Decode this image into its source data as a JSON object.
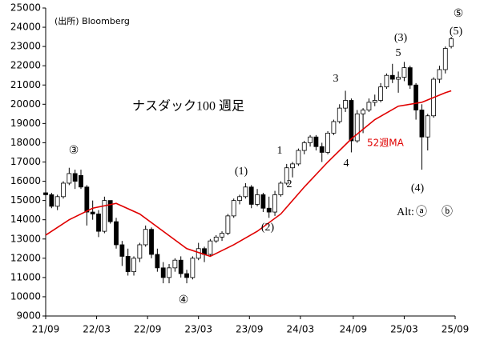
{
  "chart_data": {
    "type": "candlestick",
    "title": "ナスダック100 週足",
    "source": "(出所)  Bloomberg",
    "ylim": [
      9000,
      25000
    ],
    "yticks": [
      9000,
      10000,
      11000,
      12000,
      13000,
      14000,
      15000,
      16000,
      17000,
      18000,
      19000,
      20000,
      21000,
      22000,
      23000,
      24000,
      25000
    ],
    "xlim": [
      0,
      209
    ],
    "xticks": [
      {
        "value": 0,
        "label": "21/09"
      },
      {
        "value": 26,
        "label": "22/03"
      },
      {
        "value": 52,
        "label": "22/09"
      },
      {
        "value": 78,
        "label": "23/03"
      },
      {
        "value": 104,
        "label": "23/09"
      },
      {
        "value": 130,
        "label": "24/03"
      },
      {
        "value": 157,
        "label": "24/09"
      },
      {
        "value": 183,
        "label": "25/03"
      },
      {
        "value": 209,
        "label": "25/09"
      }
    ],
    "up_color": "#ffffff",
    "down_color": "#000000",
    "edge_color": "#000000",
    "x": [
      0,
      3,
      6,
      9,
      12,
      15,
      18,
      21,
      24,
      27,
      30,
      33,
      36,
      39,
      42,
      45,
      48,
      51,
      54,
      57,
      60,
      63,
      66,
      69,
      72,
      75,
      78,
      81,
      84,
      87,
      90,
      93,
      96,
      99,
      102,
      105,
      108,
      111,
      114,
      117,
      120,
      123,
      126,
      129,
      132,
      135,
      138,
      141,
      144,
      147,
      150,
      153,
      156,
      159,
      162,
      165,
      168,
      171,
      174,
      177,
      180,
      183,
      186,
      189,
      192,
      195,
      198,
      201,
      204,
      207
    ],
    "open": [
      15400,
      15300,
      14700,
      15200,
      15900,
      16400,
      16300,
      15700,
      14400,
      14300,
      13400,
      15000,
      13900,
      12700,
      12100,
      11300,
      12000,
      12700,
      13500,
      12200,
      11500,
      11000,
      11500,
      11900,
      11200,
      11000,
      12000,
      12500,
      12200,
      12900,
      13100,
      13300,
      14200,
      15000,
      15200,
      15700,
      14800,
      15300,
      14600,
      14400,
      15300,
      15900,
      16700,
      16900,
      17600,
      18000,
      18300,
      17800,
      17500,
      18500,
      19100,
      19800,
      20200,
      18100,
      19500,
      19700,
      20100,
      20200,
      20900,
      21500,
      21300,
      21400,
      21900,
      21000,
      19700,
      18300,
      19400,
      21300,
      21800,
      23000
    ],
    "high": [
      15700,
      15400,
      15300,
      16000,
      16700,
      16600,
      16600,
      15800,
      15000,
      14500,
      15200,
      15000,
      14100,
      12900,
      12500,
      12100,
      12800,
      13700,
      13600,
      12500,
      11800,
      11700,
      12000,
      12100,
      11400,
      12100,
      12800,
      12600,
      13000,
      13200,
      13400,
      14300,
      15100,
      15300,
      15900,
      15800,
      15600,
      15400,
      15200,
      15500,
      16000,
      16900,
      17000,
      17700,
      18100,
      18400,
      18400,
      18000,
      18600,
      19200,
      20000,
      20700,
      20300,
      19700,
      19800,
      20300,
      20500,
      21100,
      21600,
      22100,
      21700,
      22200,
      22000,
      21100,
      20000,
      19500,
      21400,
      22000,
      23000,
      23500
    ],
    "low": [
      15200,
      14600,
      14500,
      15100,
      15800,
      15600,
      15600,
      13700,
      14000,
      13100,
      13300,
      13800,
      12500,
      11600,
      11100,
      11100,
      11800,
      12600,
      12000,
      11300,
      10700,
      10700,
      11300,
      11000,
      10700,
      10900,
      11900,
      11800,
      12100,
      12800,
      12900,
      13200,
      14100,
      14800,
      15100,
      14600,
      14700,
      14400,
      14100,
      14200,
      15200,
      15800,
      16200,
      16800,
      17400,
      17800,
      17600,
      17000,
      17400,
      18400,
      19000,
      19600,
      17500,
      18000,
      18500,
      19600,
      19900,
      20100,
      20800,
      21100,
      20600,
      21200,
      20800,
      19200,
      16600,
      17600,
      19300,
      21100,
      21600,
      22900
    ],
    "close": [
      15300,
      14700,
      15200,
      15900,
      16400,
      16000,
      15700,
      14400,
      14300,
      13400,
      15000,
      13900,
      12700,
      12100,
      11300,
      12000,
      12700,
      13500,
      12200,
      11500,
      11000,
      11500,
      11900,
      11200,
      11000,
      12000,
      12500,
      12200,
      12900,
      13100,
      13300,
      14200,
      15000,
      15200,
      15700,
      14800,
      15300,
      14600,
      14400,
      15300,
      15900,
      16700,
      16900,
      17600,
      18000,
      18300,
      17800,
      17500,
      18500,
      19100,
      19800,
      20200,
      18100,
      19500,
      19700,
      20100,
      20200,
      20900,
      21500,
      21300,
      21400,
      21900,
      21000,
      19700,
      18300,
      19400,
      21300,
      21800,
      22900,
      23400
    ],
    "ma": {
      "name": "52週MA",
      "color": "#e00000",
      "x": [
        0,
        12,
        24,
        36,
        48,
        60,
        72,
        84,
        96,
        108,
        120,
        132,
        144,
        156,
        168,
        180,
        192,
        204,
        207
      ],
      "values": [
        13200,
        14000,
        14600,
        14850,
        14300,
        13400,
        12500,
        12100,
        12700,
        13400,
        14300,
        15700,
        17000,
        18200,
        19200,
        19900,
        20100,
        20600,
        20700
      ]
    },
    "annotations": [
      "③",
      "④",
      "⑤",
      "(1)",
      "(2)",
      "(3)",
      "(4)",
      "(5)",
      "1",
      "2",
      "3",
      "4",
      "5",
      "Alt:",
      "ⓐ",
      "ⓑ"
    ]
  }
}
